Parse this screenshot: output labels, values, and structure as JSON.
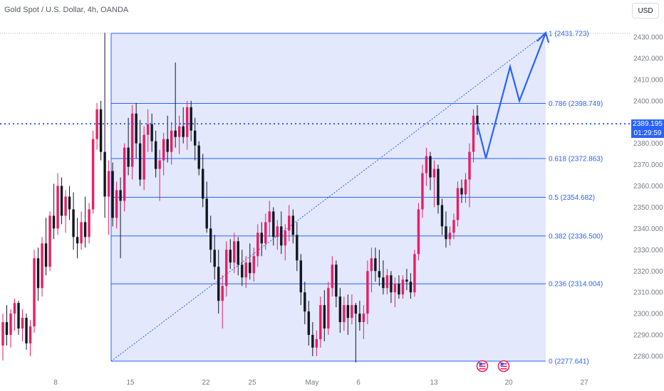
{
  "header": {
    "symbol": "Gold Spot / U.S. Dollar, 4h, OANDA",
    "currency_button": "USD"
  },
  "current_price": {
    "value": "2389.195",
    "countdown": "01:29:59"
  },
  "colors": {
    "up": "#e91e63",
    "down": "#131722",
    "fib": "#2962ff",
    "fib_fill": "#e3e8fd",
    "axis_text": "#787b86"
  },
  "chart_data": {
    "type": "candlestick",
    "title": "Gold Spot / U.S. Dollar, 4h, OANDA",
    "y_axis": {
      "range": [
        2272,
        2437
      ],
      "ticks": [
        2280,
        2290,
        2300,
        2310,
        2320,
        2330,
        2340,
        2350,
        2360,
        2370,
        2380,
        2390,
        2400,
        2410,
        2420,
        2430
      ],
      "tick_labels": [
        "2280.000",
        "2290.000",
        "2300.000",
        "2310.000",
        "2320.000",
        "2330.000",
        "2340.000",
        "2350.000",
        "2360.000",
        "2370.000",
        "2380.000",
        "2390.000",
        "2400.000",
        "2410.000",
        "2420.000",
        "2430.000"
      ]
    },
    "x_axis": {
      "labels": [
        "8",
        "15",
        "22",
        "25",
        "May",
        "6",
        "13",
        "20",
        "27"
      ]
    },
    "fibonacci_retracement": {
      "levels": [
        {
          "ratio": "1",
          "price": 2431.723,
          "label": "1 (2431.723)"
        },
        {
          "ratio": "0.786",
          "price": 2398.749,
          "label": "0.786 (2398.749)"
        },
        {
          "ratio": "0.618",
          "price": 2372.863,
          "label": "0.618 (2372.863)"
        },
        {
          "ratio": "0.5",
          "price": 2354.682,
          "label": "0.5 (2354.682)"
        },
        {
          "ratio": "0.382",
          "price": 2336.5,
          "label": "0.382 (2336.500)"
        },
        {
          "ratio": "0.236",
          "price": 2314.004,
          "label": "0.236 (2314.004)"
        },
        {
          "ratio": "0",
          "price": 2277.641,
          "label": "0 (2277.641)"
        }
      ]
    },
    "current_price_line": 2389.195,
    "projection_path": [
      2389,
      2373,
      2416,
      2400,
      2432
    ],
    "candles": [
      {
        "o": 2285,
        "h": 2300,
        "l": 2278,
        "c": 2296
      },
      {
        "o": 2296,
        "h": 2304,
        "l": 2285,
        "c": 2290
      },
      {
        "o": 2290,
        "h": 2302,
        "l": 2284,
        "c": 2300
      },
      {
        "o": 2300,
        "h": 2307,
        "l": 2292,
        "c": 2305
      },
      {
        "o": 2305,
        "h": 2306,
        "l": 2290,
        "c": 2293
      },
      {
        "o": 2293,
        "h": 2302,
        "l": 2287,
        "c": 2298
      },
      {
        "o": 2298,
        "h": 2300,
        "l": 2283,
        "c": 2286
      },
      {
        "o": 2286,
        "h": 2297,
        "l": 2280,
        "c": 2294
      },
      {
        "o": 2294,
        "h": 2330,
        "l": 2291,
        "c": 2326
      },
      {
        "o": 2326,
        "h": 2331,
        "l": 2306,
        "c": 2312
      },
      {
        "o": 2312,
        "h": 2336,
        "l": 2308,
        "c": 2333
      },
      {
        "o": 2333,
        "h": 2345,
        "l": 2318,
        "c": 2322
      },
      {
        "o": 2322,
        "h": 2348,
        "l": 2320,
        "c": 2346
      },
      {
        "o": 2346,
        "h": 2361,
        "l": 2335,
        "c": 2340
      },
      {
        "o": 2340,
        "h": 2366,
        "l": 2337,
        "c": 2360
      },
      {
        "o": 2360,
        "h": 2364,
        "l": 2342,
        "c": 2346
      },
      {
        "o": 2346,
        "h": 2358,
        "l": 2338,
        "c": 2355
      },
      {
        "o": 2355,
        "h": 2360,
        "l": 2344,
        "c": 2349
      },
      {
        "o": 2349,
        "h": 2357,
        "l": 2330,
        "c": 2336
      },
      {
        "o": 2336,
        "h": 2345,
        "l": 2326,
        "c": 2333
      },
      {
        "o": 2333,
        "h": 2348,
        "l": 2330,
        "c": 2343
      },
      {
        "o": 2343,
        "h": 2355,
        "l": 2331,
        "c": 2336
      },
      {
        "o": 2336,
        "h": 2352,
        "l": 2333,
        "c": 2349
      },
      {
        "o": 2349,
        "h": 2386,
        "l": 2347,
        "c": 2382
      },
      {
        "o": 2382,
        "h": 2399,
        "l": 2377,
        "c": 2396
      },
      {
        "o": 2396,
        "h": 2400,
        "l": 2372,
        "c": 2376
      },
      {
        "o": 2376,
        "h": 2432,
        "l": 2345,
        "c": 2355
      },
      {
        "o": 2355,
        "h": 2372,
        "l": 2337,
        "c": 2367
      },
      {
        "o": 2367,
        "h": 2371,
        "l": 2341,
        "c": 2345
      },
      {
        "o": 2345,
        "h": 2362,
        "l": 2340,
        "c": 2358
      },
      {
        "o": 2358,
        "h": 2364,
        "l": 2326,
        "c": 2353
      },
      {
        "o": 2353,
        "h": 2380,
        "l": 2348,
        "c": 2378
      },
      {
        "o": 2378,
        "h": 2392,
        "l": 2365,
        "c": 2369
      },
      {
        "o": 2369,
        "h": 2398,
        "l": 2363,
        "c": 2394
      },
      {
        "o": 2394,
        "h": 2399,
        "l": 2373,
        "c": 2380
      },
      {
        "o": 2380,
        "h": 2391,
        "l": 2360,
        "c": 2363
      },
      {
        "o": 2363,
        "h": 2388,
        "l": 2358,
        "c": 2384
      },
      {
        "o": 2384,
        "h": 2396,
        "l": 2376,
        "c": 2389
      },
      {
        "o": 2389,
        "h": 2394,
        "l": 2376,
        "c": 2381
      },
      {
        "o": 2381,
        "h": 2386,
        "l": 2364,
        "c": 2368
      },
      {
        "o": 2368,
        "h": 2377,
        "l": 2353,
        "c": 2372
      },
      {
        "o": 2372,
        "h": 2385,
        "l": 2365,
        "c": 2382
      },
      {
        "o": 2382,
        "h": 2393,
        "l": 2371,
        "c": 2376
      },
      {
        "o": 2376,
        "h": 2390,
        "l": 2370,
        "c": 2386
      },
      {
        "o": 2386,
        "h": 2418,
        "l": 2378,
        "c": 2383
      },
      {
        "o": 2383,
        "h": 2393,
        "l": 2375,
        "c": 2388
      },
      {
        "o": 2388,
        "h": 2397,
        "l": 2380,
        "c": 2383
      },
      {
        "o": 2383,
        "h": 2400,
        "l": 2377,
        "c": 2397
      },
      {
        "o": 2397,
        "h": 2400,
        "l": 2381,
        "c": 2386
      },
      {
        "o": 2386,
        "h": 2392,
        "l": 2372,
        "c": 2379
      },
      {
        "o": 2379,
        "h": 2381,
        "l": 2365,
        "c": 2368
      },
      {
        "o": 2368,
        "h": 2375,
        "l": 2350,
        "c": 2354
      },
      {
        "o": 2354,
        "h": 2362,
        "l": 2338,
        "c": 2340
      },
      {
        "o": 2340,
        "h": 2346,
        "l": 2324,
        "c": 2330
      },
      {
        "o": 2330,
        "h": 2337,
        "l": 2316,
        "c": 2322
      },
      {
        "o": 2322,
        "h": 2330,
        "l": 2300,
        "c": 2306
      },
      {
        "o": 2306,
        "h": 2318,
        "l": 2293,
        "c": 2313
      },
      {
        "o": 2313,
        "h": 2334,
        "l": 2308,
        "c": 2330
      },
      {
        "o": 2330,
        "h": 2335,
        "l": 2321,
        "c": 2324
      },
      {
        "o": 2324,
        "h": 2338,
        "l": 2319,
        "c": 2334
      },
      {
        "o": 2334,
        "h": 2336,
        "l": 2318,
        "c": 2323
      },
      {
        "o": 2323,
        "h": 2330,
        "l": 2313,
        "c": 2317
      },
      {
        "o": 2317,
        "h": 2327,
        "l": 2312,
        "c": 2324
      },
      {
        "o": 2324,
        "h": 2333,
        "l": 2316,
        "c": 2319
      },
      {
        "o": 2319,
        "h": 2331,
        "l": 2315,
        "c": 2327
      },
      {
        "o": 2327,
        "h": 2342,
        "l": 2322,
        "c": 2338
      },
      {
        "o": 2338,
        "h": 2343,
        "l": 2327,
        "c": 2333
      },
      {
        "o": 2333,
        "h": 2347,
        "l": 2330,
        "c": 2343
      },
      {
        "o": 2343,
        "h": 2353,
        "l": 2336,
        "c": 2348
      },
      {
        "o": 2348,
        "h": 2350,
        "l": 2332,
        "c": 2336
      },
      {
        "o": 2336,
        "h": 2344,
        "l": 2330,
        "c": 2341
      },
      {
        "o": 2341,
        "h": 2348,
        "l": 2328,
        "c": 2332
      },
      {
        "o": 2332,
        "h": 2342,
        "l": 2325,
        "c": 2339
      },
      {
        "o": 2339,
        "h": 2351,
        "l": 2334,
        "c": 2346
      },
      {
        "o": 2346,
        "h": 2349,
        "l": 2333,
        "c": 2337
      },
      {
        "o": 2337,
        "h": 2343,
        "l": 2320,
        "c": 2325
      },
      {
        "o": 2325,
        "h": 2328,
        "l": 2304,
        "c": 2310
      },
      {
        "o": 2310,
        "h": 2315,
        "l": 2295,
        "c": 2301
      },
      {
        "o": 2301,
        "h": 2306,
        "l": 2285,
        "c": 2290
      },
      {
        "o": 2290,
        "h": 2296,
        "l": 2280,
        "c": 2284
      },
      {
        "o": 2284,
        "h": 2292,
        "l": 2280,
        "c": 2288
      },
      {
        "o": 2288,
        "h": 2308,
        "l": 2284,
        "c": 2304
      },
      {
        "o": 2304,
        "h": 2311,
        "l": 2287,
        "c": 2293
      },
      {
        "o": 2293,
        "h": 2315,
        "l": 2290,
        "c": 2312
      },
      {
        "o": 2312,
        "h": 2327,
        "l": 2308,
        "c": 2323
      },
      {
        "o": 2323,
        "h": 2325,
        "l": 2303,
        "c": 2308
      },
      {
        "o": 2308,
        "h": 2312,
        "l": 2291,
        "c": 2296
      },
      {
        "o": 2296,
        "h": 2308,
        "l": 2292,
        "c": 2304
      },
      {
        "o": 2304,
        "h": 2309,
        "l": 2290,
        "c": 2298
      },
      {
        "o": 2298,
        "h": 2309,
        "l": 2295,
        "c": 2304
      },
      {
        "o": 2304,
        "h": 2305,
        "l": 2277,
        "c": 2300
      },
      {
        "o": 2300,
        "h": 2306,
        "l": 2292,
        "c": 2296
      },
      {
        "o": 2296,
        "h": 2304,
        "l": 2288,
        "c": 2300
      },
      {
        "o": 2300,
        "h": 2325,
        "l": 2295,
        "c": 2320
      },
      {
        "o": 2320,
        "h": 2331,
        "l": 2310,
        "c": 2326
      },
      {
        "o": 2326,
        "h": 2331,
        "l": 2315,
        "c": 2320
      },
      {
        "o": 2320,
        "h": 2330,
        "l": 2313,
        "c": 2317
      },
      {
        "o": 2317,
        "h": 2325,
        "l": 2309,
        "c": 2312
      },
      {
        "o": 2312,
        "h": 2321,
        "l": 2309,
        "c": 2318
      },
      {
        "o": 2318,
        "h": 2320,
        "l": 2305,
        "c": 2310
      },
      {
        "o": 2310,
        "h": 2317,
        "l": 2303,
        "c": 2314
      },
      {
        "o": 2314,
        "h": 2318,
        "l": 2307,
        "c": 2309
      },
      {
        "o": 2309,
        "h": 2318,
        "l": 2307,
        "c": 2316
      },
      {
        "o": 2316,
        "h": 2321,
        "l": 2311,
        "c": 2315
      },
      {
        "o": 2315,
        "h": 2319,
        "l": 2307,
        "c": 2310
      },
      {
        "o": 2310,
        "h": 2330,
        "l": 2308,
        "c": 2328
      },
      {
        "o": 2328,
        "h": 2352,
        "l": 2325,
        "c": 2349
      },
      {
        "o": 2349,
        "h": 2370,
        "l": 2345,
        "c": 2366
      },
      {
        "o": 2366,
        "h": 2378,
        "l": 2360,
        "c": 2374
      },
      {
        "o": 2374,
        "h": 2376,
        "l": 2358,
        "c": 2364
      },
      {
        "o": 2364,
        "h": 2372,
        "l": 2350,
        "c": 2368
      },
      {
        "o": 2368,
        "h": 2370,
        "l": 2347,
        "c": 2351
      },
      {
        "o": 2351,
        "h": 2354,
        "l": 2337,
        "c": 2341
      },
      {
        "o": 2341,
        "h": 2348,
        "l": 2331,
        "c": 2335
      },
      {
        "o": 2335,
        "h": 2341,
        "l": 2332,
        "c": 2338
      },
      {
        "o": 2338,
        "h": 2347,
        "l": 2335,
        "c": 2344
      },
      {
        "o": 2344,
        "h": 2362,
        "l": 2341,
        "c": 2359
      },
      {
        "o": 2359,
        "h": 2363,
        "l": 2352,
        "c": 2356
      },
      {
        "o": 2356,
        "h": 2366,
        "l": 2352,
        "c": 2363
      },
      {
        "o": 2363,
        "h": 2380,
        "l": 2350,
        "c": 2376
      },
      {
        "o": 2376,
        "h": 2396,
        "l": 2371,
        "c": 2393
      },
      {
        "o": 2393,
        "h": 2398,
        "l": 2384,
        "c": 2389
      }
    ]
  }
}
